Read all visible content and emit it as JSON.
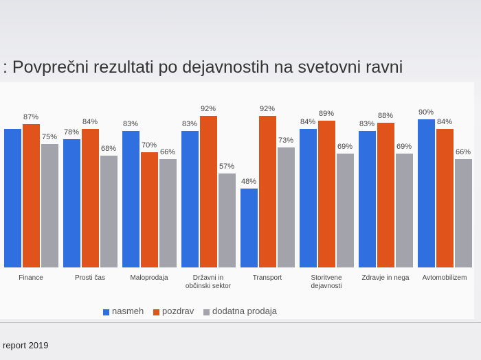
{
  "chart_data": {
    "type": "bar",
    "title": ": Povprečni rezultati po dejavnostih na svetovni ravni",
    "categories": [
      "Finance",
      "Prosti čas",
      "Maloprodaja",
      "Državni in občinski sektor",
      "Transport",
      "Storitvene dejavnosti",
      "Zdravje in nega",
      "Avtomobilizem"
    ],
    "series": [
      {
        "name": "nasmeh",
        "color": "#2f6fe0",
        "values": [
          84,
          78,
          83,
          83,
          48,
          84,
          83,
          90
        ],
        "value_labels": [
          null,
          "78%",
          "83%",
          "83%",
          "48%",
          "84%",
          "83%",
          "90%"
        ]
      },
      {
        "name": "pozdrav",
        "color": "#e0541c",
        "values": [
          87,
          84,
          70,
          92,
          92,
          89,
          88,
          84
        ],
        "value_labels": [
          "87%",
          "84%",
          "70%",
          "92%",
          "92%",
          "89%",
          "88%",
          "84%"
        ]
      },
      {
        "name": "dodatna prodaja",
        "color": "#a2a3ab",
        "values": [
          75,
          68,
          66,
          57,
          73,
          69,
          69,
          66
        ],
        "value_labels": [
          "75%",
          "68%",
          "66%",
          "57%",
          "73%",
          "69%",
          "69%",
          "66%"
        ]
      }
    ],
    "legend": "bottom",
    "footer": "report 2019"
  }
}
